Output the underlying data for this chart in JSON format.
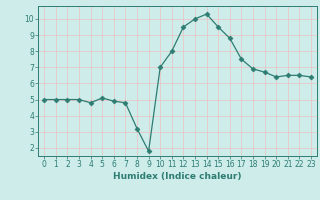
{
  "x": [
    0,
    1,
    2,
    3,
    4,
    5,
    6,
    7,
    8,
    9,
    10,
    11,
    12,
    13,
    14,
    15,
    16,
    17,
    18,
    19,
    20,
    21,
    22,
    23
  ],
  "y": [
    5.0,
    5.0,
    5.0,
    5.0,
    4.8,
    5.1,
    4.9,
    4.8,
    3.2,
    1.8,
    7.0,
    8.0,
    9.5,
    10.0,
    10.3,
    9.5,
    8.8,
    7.5,
    6.9,
    6.7,
    6.4,
    6.5,
    6.5,
    6.4
  ],
  "line_color": "#2e7d72",
  "marker": "D",
  "marker_size": 2.5,
  "background_color": "#ceecea",
  "grid_color": "#e8c8c8",
  "xlabel": "Humidex (Indice chaleur)",
  "ylim": [
    1.5,
    10.8
  ],
  "xlim": [
    -0.5,
    23.5
  ],
  "yticks": [
    2,
    3,
    4,
    5,
    6,
    7,
    8,
    9,
    10
  ],
  "xticks": [
    0,
    1,
    2,
    3,
    4,
    5,
    6,
    7,
    8,
    9,
    10,
    11,
    12,
    13,
    14,
    15,
    16,
    17,
    18,
    19,
    20,
    21,
    22,
    23
  ],
  "tick_color": "#2e7d72",
  "label_fontsize": 6.5,
  "tick_fontsize": 5.5,
  "spine_color": "#2e7d72"
}
